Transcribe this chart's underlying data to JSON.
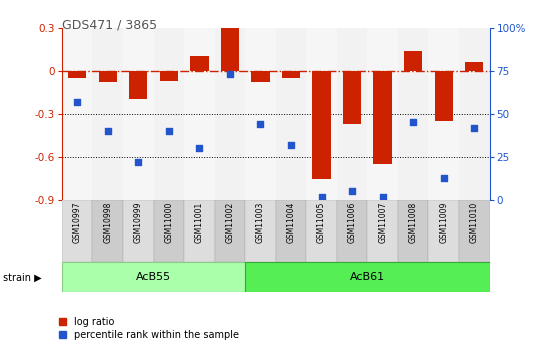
{
  "title": "GDS471 / 3865",
  "samples": [
    "GSM10997",
    "GSM10998",
    "GSM10999",
    "GSM11000",
    "GSM11001",
    "GSM11002",
    "GSM11003",
    "GSM11004",
    "GSM11005",
    "GSM11006",
    "GSM11007",
    "GSM11008",
    "GSM11009",
    "GSM11010"
  ],
  "log_ratio": [
    -0.05,
    -0.08,
    -0.2,
    -0.07,
    0.1,
    0.3,
    -0.08,
    -0.05,
    -0.75,
    -0.37,
    -0.65,
    0.14,
    -0.35,
    0.06
  ],
  "percentile": [
    57,
    40,
    22,
    40,
    30,
    73,
    44,
    32,
    2,
    5,
    2,
    45,
    13,
    42
  ],
  "ylim_left": [
    -0.9,
    0.3
  ],
  "ylim_right": [
    0,
    100
  ],
  "hline_y": 0.0,
  "dotted_lines": [
    -0.3,
    -0.6
  ],
  "bar_color": "#cc2200",
  "dot_color": "#2255cc",
  "background_color": "#ffffff",
  "left_ytick_vals": [
    0.3,
    0.0,
    -0.3,
    -0.6,
    -0.9
  ],
  "left_ytick_labels": [
    "0.3",
    "0",
    "-0.3",
    "-0.6",
    "-0.9"
  ],
  "right_ytick_vals": [
    100,
    75,
    50,
    25,
    0
  ],
  "right_ytick_labels": [
    "100%",
    "75",
    "50",
    "25",
    "0"
  ],
  "acb55_color": "#aaffaa",
  "acb61_color": "#55ee55",
  "acb55_edge": "#88cc88",
  "acb61_edge": "#33aa33",
  "legend_log_ratio": "log ratio",
  "legend_percentile": "percentile rank within the sample",
  "acb55_count": 6,
  "acb61_count": 8
}
